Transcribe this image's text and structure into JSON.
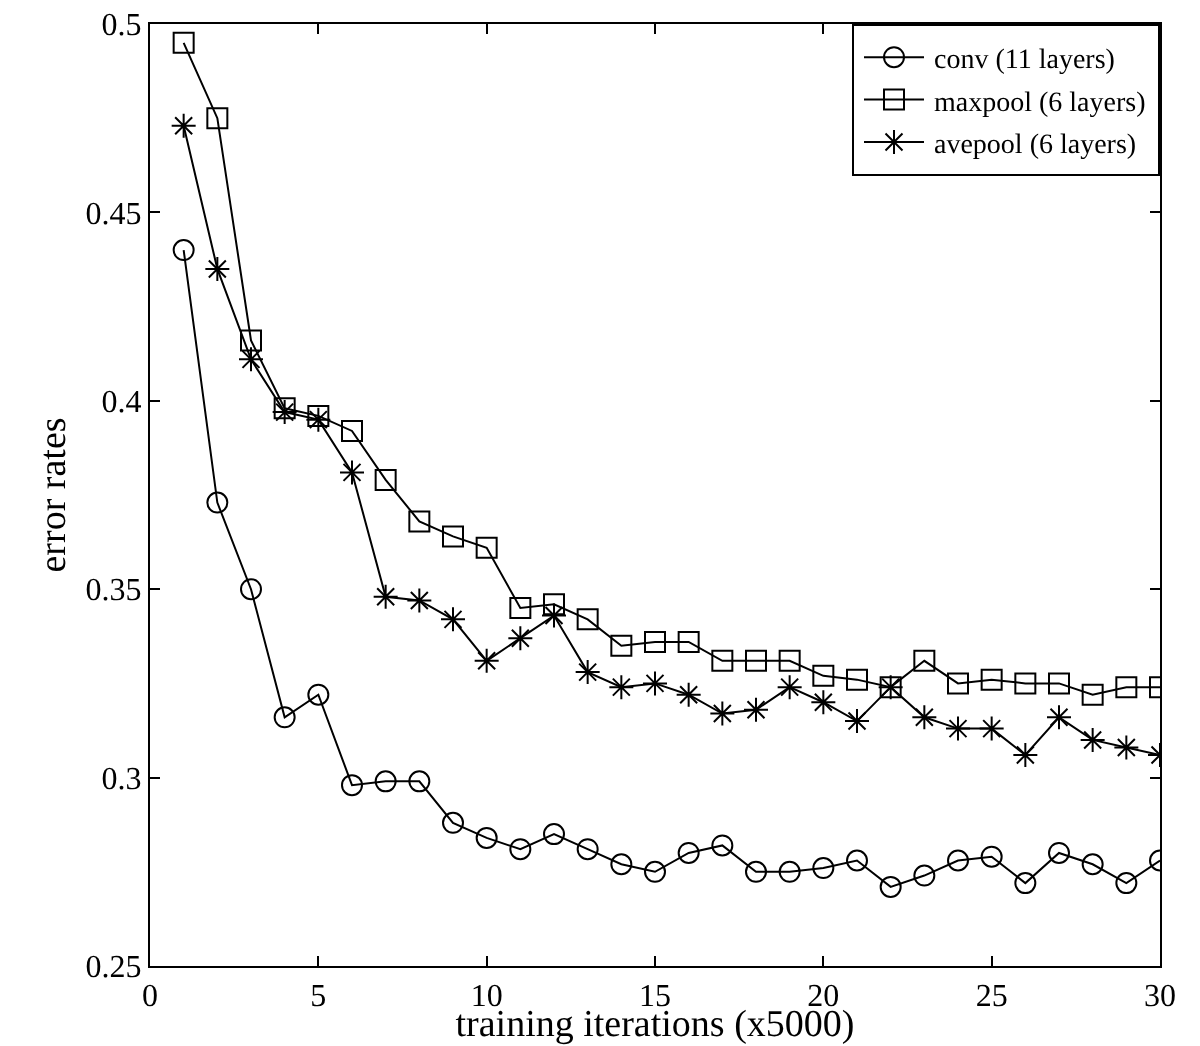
{
  "chart_data": {
    "type": "line",
    "xlabel": "training iterations (x5000)",
    "ylabel": "error rates",
    "x": [
      1,
      2,
      3,
      4,
      5,
      6,
      7,
      8,
      9,
      10,
      11,
      12,
      13,
      14,
      15,
      16,
      17,
      18,
      19,
      20,
      21,
      22,
      23,
      24,
      25,
      26,
      27,
      28,
      29,
      30
    ],
    "series": [
      {
        "name": "conv (11 layers)",
        "color": "#000000",
        "marker": "circle",
        "values": [
          0.44,
          0.373,
          0.35,
          0.316,
          0.322,
          0.298,
          0.299,
          0.299,
          0.288,
          0.284,
          0.281,
          0.285,
          0.281,
          0.277,
          0.275,
          0.28,
          0.282,
          0.275,
          0.275,
          0.276,
          0.278,
          0.271,
          0.274,
          0.278,
          0.279,
          0.272,
          0.28,
          0.277,
          0.272,
          0.278
        ]
      },
      {
        "name": "maxpool (6 layers)",
        "color": "#000000",
        "marker": "square",
        "values": [
          0.495,
          0.475,
          0.416,
          0.398,
          0.396,
          0.392,
          0.379,
          0.368,
          0.364,
          0.361,
          0.345,
          0.346,
          0.342,
          0.335,
          0.336,
          0.336,
          0.331,
          0.331,
          0.331,
          0.327,
          0.326,
          0.324,
          0.331,
          0.325,
          0.326,
          0.325,
          0.325,
          0.322,
          0.324,
          0.324
        ]
      },
      {
        "name": "avepool (6 layers)",
        "color": "#000000",
        "marker": "cross",
        "values": [
          0.473,
          0.435,
          0.411,
          0.397,
          0.395,
          0.381,
          0.348,
          0.347,
          0.342,
          0.331,
          0.337,
          0.343,
          0.328,
          0.324,
          0.325,
          0.322,
          0.317,
          0.318,
          0.324,
          0.32,
          0.315,
          0.324,
          0.316,
          0.313,
          0.313,
          0.306,
          0.316,
          0.31,
          0.308,
          0.306
        ]
      }
    ],
    "xlim": [
      0,
      30
    ],
    "xticks": [
      0,
      5,
      10,
      15,
      20,
      25,
      30
    ],
    "ylim": [
      0.25,
      0.5
    ],
    "yticks": [
      0.25,
      0.3,
      0.35,
      0.4,
      0.45,
      0.5
    ],
    "grid": false,
    "legend": "top right",
    "line_style": "solid"
  }
}
